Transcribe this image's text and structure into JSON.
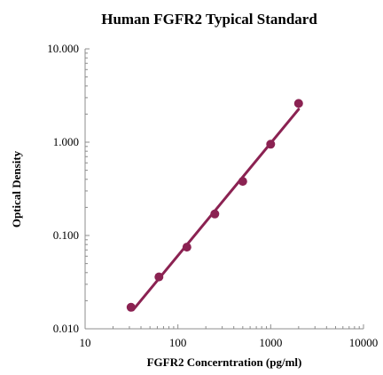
{
  "chart_data": {
    "type": "scatter",
    "title": "Human FGFR2 Typical Standard",
    "xlabel": "FGFR2 Concerntration (pg/ml)",
    "ylabel": "Optical Density",
    "x_scale": "log",
    "y_scale": "log",
    "xlim": [
      10,
      10000
    ],
    "ylim": [
      0.01,
      10
    ],
    "x_ticks": [
      {
        "value": 10,
        "label": "10"
      },
      {
        "value": 100,
        "label": "100"
      },
      {
        "value": 1000,
        "label": "1000"
      },
      {
        "value": 10000,
        "label": "10000"
      }
    ],
    "y_ticks": [
      {
        "value": 0.01,
        "label": "0.010"
      },
      {
        "value": 0.1,
        "label": "0.100"
      },
      {
        "value": 1,
        "label": "1.000"
      },
      {
        "value": 10,
        "label": "10.000"
      }
    ],
    "grid": false,
    "color": "#8b2252",
    "series": [
      {
        "points": [
          {
            "x": 31.25,
            "y": 0.017
          },
          {
            "x": 62.5,
            "y": 0.036
          },
          {
            "x": 125,
            "y": 0.075
          },
          {
            "x": 250,
            "y": 0.17
          },
          {
            "x": 500,
            "y": 0.38
          },
          {
            "x": 1000,
            "y": 0.95
          },
          {
            "x": 2000,
            "y": 2.6
          }
        ],
        "fit_line": [
          {
            "x": 33,
            "y": 0.016
          },
          {
            "x": 2000,
            "y": 2.25
          }
        ]
      }
    ]
  }
}
